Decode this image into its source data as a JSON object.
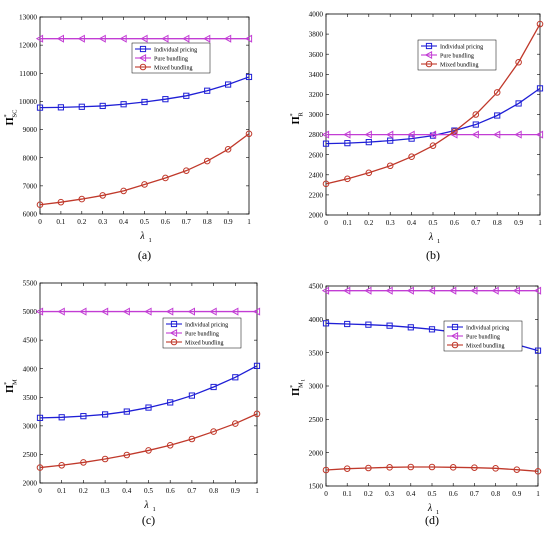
{
  "chart_data": [
    {
      "type": "line",
      "panel_label": "(a)",
      "ylabel_main": "Π",
      "ylabel_sup": "*",
      "ylabel_sub": "SC",
      "xlabel_main": "λ",
      "xlabel_sub": "1",
      "x": [
        0,
        0.1,
        0.2,
        0.3,
        0.4,
        0.5,
        0.6,
        0.7,
        0.8,
        0.9,
        1
      ],
      "xticks": [
        "0",
        "0.1",
        "0.2",
        "0.3",
        "0.4",
        "0.5",
        "0.6",
        "0.7",
        "0.8",
        "0.9",
        "1"
      ],
      "xlim": [
        0,
        1
      ],
      "ylim": [
        6000,
        13000
      ],
      "yticks": [
        "6000",
        "7000",
        "8000",
        "9000",
        "10000",
        "11000",
        "12000",
        "13000"
      ],
      "legend_position": "top-left",
      "series": [
        {
          "name": "Individual pricing",
          "color": "#1f1fd6",
          "marker": "square",
          "values": [
            9780,
            9790,
            9810,
            9840,
            9900,
            9980,
            10080,
            10200,
            10380,
            10600,
            10870
          ]
        },
        {
          "name": "Pure bundling",
          "color": "#c23dd4",
          "marker": "triangle-left",
          "values": [
            12230,
            12230,
            12230,
            12230,
            12230,
            12230,
            12230,
            12230,
            12230,
            12230,
            12230
          ]
        },
        {
          "name": "Mixed bundling",
          "color": "#c0392b",
          "marker": "circle",
          "values": [
            6330,
            6420,
            6530,
            6660,
            6820,
            7050,
            7280,
            7540,
            7880,
            8300,
            8850
          ]
        }
      ]
    },
    {
      "type": "line",
      "panel_label": "(b)",
      "ylabel_main": "Π",
      "ylabel_sup": "*",
      "ylabel_sub": "R",
      "xlabel_main": "λ",
      "xlabel_sub": "1",
      "x": [
        0,
        0.1,
        0.2,
        0.3,
        0.4,
        0.5,
        0.6,
        0.7,
        0.8,
        0.9,
        1
      ],
      "xticks": [
        "0",
        "0.1",
        "0.2",
        "0.3",
        "0.4",
        "0.5",
        "0.6",
        "0.7",
        "0.8",
        "0.9",
        "1"
      ],
      "xlim": [
        0,
        1
      ],
      "ylim": [
        2000,
        4000
      ],
      "yticks": [
        "2000",
        "2200",
        "2400",
        "2600",
        "2800",
        "3000",
        "3200",
        "3400",
        "3600",
        "3800",
        "4000"
      ],
      "legend_position": "top-left",
      "series": [
        {
          "name": "Individual pricing",
          "color": "#1f1fd6",
          "marker": "square",
          "values": [
            2710,
            2715,
            2725,
            2740,
            2760,
            2790,
            2840,
            2900,
            2990,
            3110,
            3260
          ]
        },
        {
          "name": "Pure bundling",
          "color": "#c23dd4",
          "marker": "triangle-left",
          "values": [
            2800,
            2800,
            2800,
            2800,
            2800,
            2800,
            2800,
            2800,
            2800,
            2800,
            2800
          ]
        },
        {
          "name": "Mixed bundling",
          "color": "#c0392b",
          "marker": "circle",
          "values": [
            2310,
            2360,
            2420,
            2490,
            2580,
            2690,
            2830,
            3000,
            3220,
            3520,
            3900
          ]
        }
      ]
    },
    {
      "type": "line",
      "panel_label": "(c)",
      "ylabel_main": "Π",
      "ylabel_sup": "*",
      "ylabel_sub": "M",
      "xlabel_main": "λ",
      "xlabel_sub": "1",
      "x": [
        0,
        0.1,
        0.2,
        0.3,
        0.4,
        0.5,
        0.6,
        0.7,
        0.8,
        0.9,
        1
      ],
      "xticks": [
        "0",
        "0.1",
        "0.2",
        "0.3",
        "0.4",
        "0.5",
        "0.6",
        "0.7",
        "0.8",
        "0.9",
        "1"
      ],
      "xlim": [
        0,
        1
      ],
      "ylim": [
        2000,
        5500
      ],
      "yticks": [
        "2000",
        "2500",
        "3000",
        "3500",
        "4000",
        "4500",
        "5000",
        "5500"
      ],
      "legend_position": "top-right",
      "series": [
        {
          "name": "Individual pricing",
          "color": "#1f1fd6",
          "marker": "square",
          "values": [
            3140,
            3150,
            3170,
            3200,
            3250,
            3320,
            3410,
            3530,
            3680,
            3850,
            4050
          ]
        },
        {
          "name": "Pure bundling",
          "color": "#c23dd4",
          "marker": "triangle-left",
          "values": [
            5000,
            5000,
            5000,
            5000,
            5000,
            5000,
            5000,
            5000,
            5000,
            5000,
            5000
          ]
        },
        {
          "name": "Mixed bundling",
          "color": "#c0392b",
          "marker": "circle",
          "values": [
            2270,
            2310,
            2360,
            2420,
            2490,
            2570,
            2660,
            2770,
            2900,
            3040,
            3210
          ]
        }
      ]
    },
    {
      "type": "line",
      "panel_label": "(d)",
      "ylabel_main": "Π",
      "ylabel_sup": "*",
      "ylabel_sub": "M",
      "ylabel_subsub": "1",
      "xlabel_main": "λ",
      "xlabel_sub": "1",
      "x": [
        0,
        0.1,
        0.2,
        0.3,
        0.4,
        0.5,
        0.6,
        0.7,
        0.8,
        0.9,
        1
      ],
      "xticks": [
        "0",
        "0.1",
        "0.2",
        "0.3",
        "0.4",
        "0.5",
        "0.6",
        "0.7",
        "0.8",
        "0.9",
        "1"
      ],
      "xlim": [
        0,
        1
      ],
      "ylim": [
        1500,
        4500
      ],
      "yticks": [
        "1500",
        "2000",
        "2500",
        "3000",
        "3500",
        "4000",
        "4500"
      ],
      "legend_position": "top-right",
      "series": [
        {
          "name": "Individual pricing",
          "color": "#1f1fd6",
          "marker": "square",
          "values": [
            3940,
            3930,
            3920,
            3905,
            3880,
            3850,
            3810,
            3760,
            3700,
            3620,
            3530
          ]
        },
        {
          "name": "Pure bundling",
          "color": "#c23dd4",
          "marker": "triangle-left",
          "values": [
            4430,
            4430,
            4430,
            4430,
            4430,
            4430,
            4430,
            4430,
            4430,
            4430,
            4430
          ]
        },
        {
          "name": "Mixed bundling",
          "color": "#c0392b",
          "marker": "circle",
          "values": [
            1740,
            1760,
            1770,
            1780,
            1785,
            1785,
            1780,
            1775,
            1765,
            1745,
            1720
          ]
        }
      ]
    }
  ]
}
